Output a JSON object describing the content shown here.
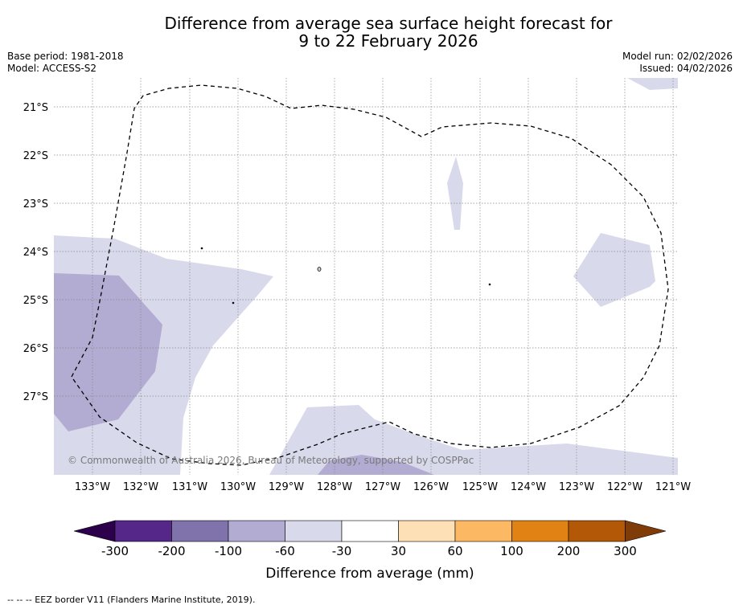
{
  "title": {
    "line1": "Difference from average sea surface height forecast for",
    "line2": "9 to 22 February 2026"
  },
  "meta": {
    "base_period": "Base period: 1981-2018",
    "model": "Model: ACCESS-S2",
    "model_run": "Model run: 02/02/2026",
    "issued": "Issued: 04/02/2026"
  },
  "axes": {
    "x_labels": [
      "133°W",
      "132°W",
      "131°W",
      "130°W",
      "129°W",
      "128°W",
      "127°W",
      "126°W",
      "125°W",
      "124°W",
      "123°W",
      "122°W",
      "121°W"
    ],
    "y_labels": [
      "21°S",
      "22°S",
      "23°S",
      "24°S",
      "25°S",
      "26°S",
      "27°S"
    ]
  },
  "copyright": "© Commonwealth of Australia 2026, Bureau of Meteorology, supported by COSPPac",
  "colorbar": {
    "tick_labels": [
      "-300",
      "-200",
      "-100",
      "-60",
      "-30",
      "30",
      "60",
      "100",
      "200",
      "300"
    ],
    "label": "Difference from average (mm)",
    "colors": [
      "#542788",
      "#8073ac",
      "#b2abd2",
      "#d8daeb",
      "#ffffff",
      "#fee0b6",
      "#fdb863",
      "#e08214",
      "#b35806"
    ],
    "under_color": "#2d004b",
    "over_color": "#7f3b08"
  },
  "footnote": "--  --  -- EEZ border V11 (Flanders Marine Institute, 2019)."
}
